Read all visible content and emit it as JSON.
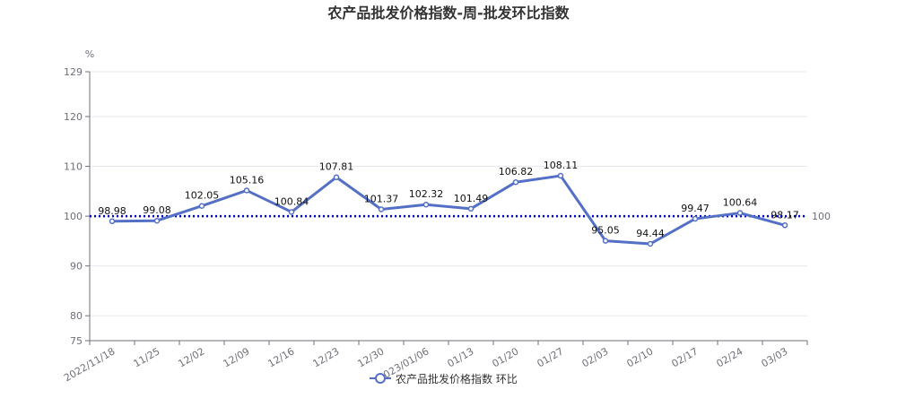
{
  "chart_data": {
    "type": "line",
    "title": "农产品批发价格指数-周-批发环比指数",
    "ylabel": "%",
    "categories": [
      "2022/11/18",
      "11/25",
      "12/02",
      "12/09",
      "12/16",
      "12/23",
      "12/30",
      "2023/01/06",
      "01/13",
      "01/20",
      "01/27",
      "02/03",
      "02/10",
      "02/17",
      "02/24",
      "03/03"
    ],
    "series": [
      {
        "name": "农产品批发价格指数 环比",
        "values": [
          98.98,
          99.08,
          102.05,
          105.16,
          100.84,
          107.81,
          101.37,
          102.32,
          101.49,
          106.82,
          108.11,
          95.05,
          94.44,
          99.47,
          100.64,
          98.17
        ],
        "labels": [
          "98.98",
          "99.08",
          "102.05",
          "105.16",
          "100.84",
          "107.81",
          "101.37",
          "102.32",
          "101.49",
          "106.82",
          "108.11",
          "95.05",
          "94.44",
          "99.47",
          "100.64",
          "98.17"
        ]
      }
    ],
    "ylim": [
      75,
      129
    ],
    "yticks": [
      "75",
      "80",
      "90",
      "100",
      "110",
      "120",
      "129"
    ],
    "reference_line": {
      "value": 100,
      "label": "100",
      "color": "#0000cc"
    },
    "grid": true,
    "legend_position": "bottom-center",
    "colors": {
      "series": "#5470c6",
      "axis": "#6e7079",
      "grid": "#e6e8ef"
    }
  }
}
